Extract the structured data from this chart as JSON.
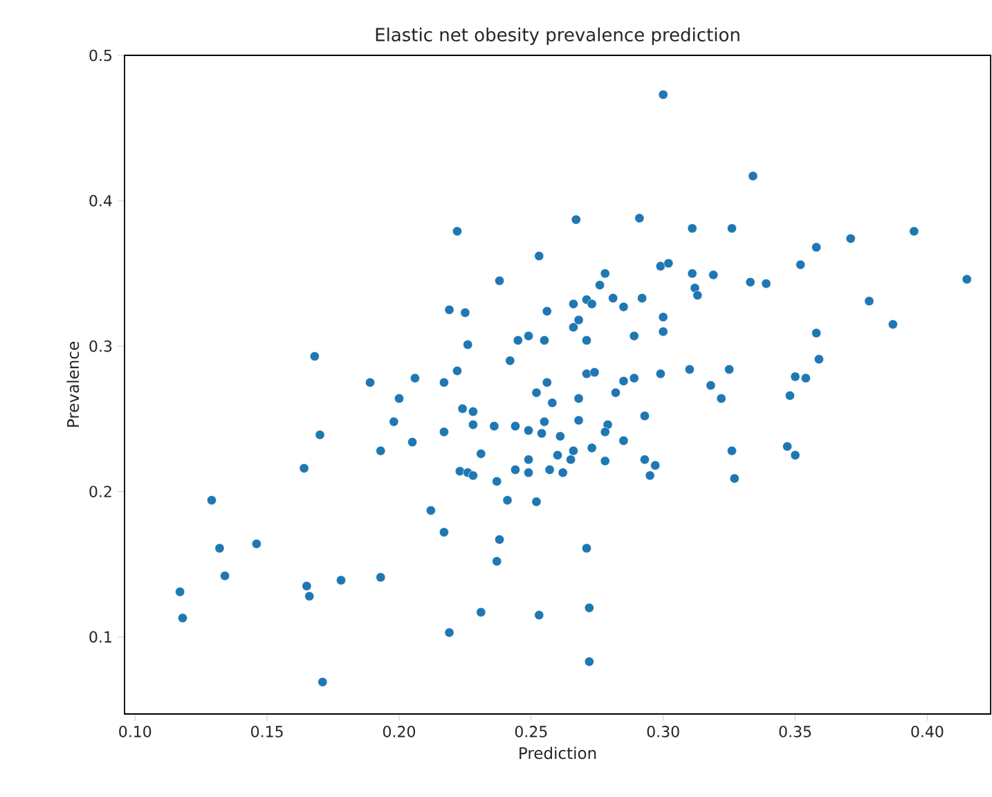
{
  "chart_data": {
    "type": "scatter",
    "title": "Elastic net obesity prevalence prediction",
    "xlabel": "Prediction",
    "ylabel": "Prevalence",
    "xlim": [
      0.096,
      0.424
    ],
    "ylim": [
      0.047,
      0.5
    ],
    "xticks": [
      {
        "value": 0.1,
        "label": "0.10"
      },
      {
        "value": 0.15,
        "label": "0.15"
      },
      {
        "value": 0.2,
        "label": "0.20"
      },
      {
        "value": 0.25,
        "label": "0.25"
      },
      {
        "value": 0.3,
        "label": "0.30"
      },
      {
        "value": 0.35,
        "label": "0.35"
      },
      {
        "value": 0.4,
        "label": "0.40"
      }
    ],
    "yticks": [
      0.1,
      0.2,
      0.3,
      0.4,
      0.5
    ],
    "marker": "circle",
    "series": [
      {
        "color": "#1f77b4",
        "x": [
          0.3,
          0.334,
          0.267,
          0.291,
          0.311,
          0.326,
          0.371,
          0.395,
          0.415,
          0.358,
          0.352,
          0.278,
          0.276,
          0.299,
          0.302,
          0.311,
          0.319,
          0.312,
          0.313,
          0.333,
          0.339,
          0.378,
          0.387,
          0.358,
          0.359,
          0.266,
          0.271,
          0.273,
          0.281,
          0.285,
          0.292,
          0.3,
          0.3,
          0.268,
          0.266,
          0.271,
          0.289,
          0.271,
          0.274,
          0.285,
          0.289,
          0.299,
          0.31,
          0.325,
          0.318,
          0.35,
          0.354,
          0.348,
          0.282,
          0.268,
          0.322,
          0.268,
          0.293,
          0.261,
          0.279,
          0.278,
          0.285,
          0.273,
          0.266,
          0.26,
          0.265,
          0.262,
          0.278,
          0.293,
          0.297,
          0.295,
          0.326,
          0.327,
          0.347,
          0.35,
          0.271,
          0.272,
          0.272,
          0.17,
          0.164,
          0.129,
          0.132,
          0.146,
          0.134,
          0.117,
          0.118,
          0.165,
          0.166,
          0.178,
          0.193,
          0.171,
          0.193,
          0.198,
          0.2,
          0.205,
          0.217,
          0.224,
          0.228,
          0.228,
          0.236,
          0.231,
          0.244,
          0.249,
          0.255,
          0.254,
          0.258,
          0.252,
          0.223,
          0.226,
          0.228,
          0.237,
          0.241,
          0.249,
          0.244,
          0.249,
          0.252,
          0.257,
          0.212,
          0.217,
          0.238,
          0.237,
          0.231,
          0.219,
          0.253,
          0.222,
          0.253,
          0.238,
          0.219,
          0.225,
          0.256,
          0.226,
          0.245,
          0.249,
          0.255,
          0.168,
          0.242,
          0.222,
          0.189,
          0.206,
          0.217,
          0.256
        ],
        "values": [
          0.473,
          0.417,
          0.387,
          0.388,
          0.381,
          0.381,
          0.374,
          0.379,
          0.346,
          0.368,
          0.356,
          0.35,
          0.342,
          0.355,
          0.357,
          0.35,
          0.349,
          0.34,
          0.335,
          0.344,
          0.343,
          0.331,
          0.315,
          0.309,
          0.291,
          0.329,
          0.332,
          0.329,
          0.333,
          0.327,
          0.333,
          0.32,
          0.31,
          0.318,
          0.313,
          0.304,
          0.307,
          0.281,
          0.282,
          0.276,
          0.278,
          0.281,
          0.284,
          0.284,
          0.273,
          0.279,
          0.278,
          0.266,
          0.268,
          0.264,
          0.264,
          0.249,
          0.252,
          0.238,
          0.246,
          0.241,
          0.235,
          0.23,
          0.228,
          0.225,
          0.222,
          0.213,
          0.221,
          0.222,
          0.218,
          0.211,
          0.228,
          0.209,
          0.231,
          0.225,
          0.161,
          0.12,
          0.083,
          0.239,
          0.216,
          0.194,
          0.161,
          0.164,
          0.142,
          0.131,
          0.113,
          0.135,
          0.128,
          0.139,
          0.141,
          0.069,
          0.228,
          0.248,
          0.264,
          0.234,
          0.241,
          0.257,
          0.255,
          0.246,
          0.245,
          0.226,
          0.245,
          0.242,
          0.248,
          0.24,
          0.261,
          0.268,
          0.214,
          0.213,
          0.211,
          0.207,
          0.194,
          0.222,
          0.215,
          0.213,
          0.193,
          0.215,
          0.187,
          0.172,
          0.167,
          0.152,
          0.117,
          0.103,
          0.115,
          0.379,
          0.362,
          0.345,
          0.325,
          0.323,
          0.324,
          0.301,
          0.304,
          0.307,
          0.304,
          0.293,
          0.29,
          0.283,
          0.275,
          0.278,
          0.275,
          0.275
        ]
      }
    ]
  }
}
